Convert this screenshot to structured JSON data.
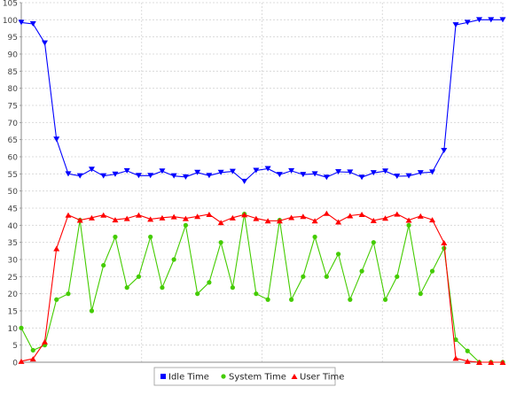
{
  "chart_data": {
    "type": "line",
    "title": "",
    "xlabel": "",
    "ylabel": "",
    "ylim": [
      0,
      105
    ],
    "y_ticks": [
      "0",
      "5",
      "10",
      "15",
      "20",
      "25",
      "30",
      "35",
      "40",
      "45",
      "50",
      "55",
      "60",
      "65",
      "70",
      "75",
      "80",
      "85",
      "90",
      "95",
      "100",
      "105"
    ],
    "grid": true,
    "legend_position": "bottom",
    "x": [
      0,
      1,
      2,
      3,
      4,
      5,
      6,
      7,
      8,
      9,
      10,
      11,
      12,
      13,
      14,
      15,
      16,
      17,
      18,
      19,
      20,
      21,
      22,
      23,
      24,
      25,
      26,
      27,
      28,
      29,
      30,
      31,
      32,
      33,
      34,
      35,
      36,
      37,
      38,
      39,
      40,
      41
    ],
    "series": [
      {
        "name": "Idle Time",
        "color": "#0000ff",
        "marker": "triangle-down",
        "values": [
          99.2,
          98.8,
          93.2,
          65.1,
          55.0,
          54.4,
          56.3,
          54.4,
          54.9,
          55.9,
          54.5,
          54.5,
          55.8,
          54.4,
          54.1,
          55.4,
          54.5,
          55.4,
          55.7,
          52.8,
          56.0,
          56.5,
          54.8,
          55.9,
          54.8,
          55.0,
          54.0,
          55.6,
          55.5,
          54.0,
          55.3,
          55.8,
          54.3,
          54.4,
          55.3,
          55.5,
          61.8,
          98.5,
          99.2,
          100.0,
          100.0,
          100.0
        ]
      },
      {
        "name": "System Time",
        "color": "#44cc00",
        "marker": "circle",
        "values": [
          10.0,
          3.5,
          5.0,
          18.3,
          20.0,
          41.5,
          15.0,
          28.3,
          36.6,
          21.8,
          25.0,
          36.6,
          21.8,
          30.0,
          40.0,
          20.0,
          23.3,
          35.0,
          21.8,
          43.3,
          20.0,
          18.3,
          41.5,
          18.3,
          25.0,
          36.6,
          25.0,
          31.6,
          18.3,
          26.6,
          35.0,
          18.3,
          25.0,
          40.0,
          20.0,
          26.6,
          33.3,
          6.6,
          3.3,
          0.0,
          0.0,
          0.0
        ]
      },
      {
        "name": "User Time",
        "color": "#ff0000",
        "marker": "triangle-up",
        "values": [
          0.3,
          1.0,
          6.0,
          33.2,
          43.0,
          41.5,
          42.2,
          43.0,
          41.6,
          42.0,
          43.0,
          41.8,
          42.2,
          42.5,
          42.0,
          42.6,
          43.2,
          40.8,
          42.2,
          43.1,
          42.0,
          41.3,
          41.3,
          42.3,
          42.6,
          41.3,
          43.5,
          41.0,
          42.8,
          43.2,
          41.4,
          42.1,
          43.3,
          41.5,
          42.7,
          41.6,
          34.9,
          1.2,
          0.3,
          0.0,
          0.0,
          0.0
        ]
      }
    ]
  }
}
